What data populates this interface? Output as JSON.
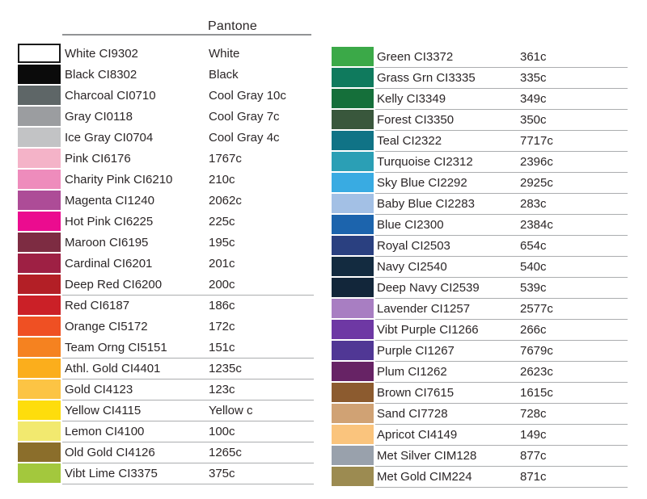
{
  "header": {
    "pantone_label": "Pantone"
  },
  "colors": {
    "text": "#2b2627",
    "divider": "#abadaf",
    "header_rule": "#919395"
  },
  "columns": [
    {
      "id": "left",
      "rows": [
        {
          "name": "White",
          "code": "CI9302",
          "pantone": "White",
          "color": "#ffffff",
          "swatch_border": "#1a1a1a",
          "divider": false
        },
        {
          "name": "Black",
          "code": "CI8302",
          "pantone": "Black",
          "color": "#0b0b0b",
          "divider": false
        },
        {
          "name": "Charcoal",
          "code": "CI0710",
          "pantone": "Cool Gray 10c",
          "color": "#5e6667",
          "divider": false
        },
        {
          "name": "Gray",
          "code": "CI0118",
          "pantone": "Cool Gray 7c",
          "color": "#9b9da0",
          "divider": false
        },
        {
          "name": "Ice Gray",
          "code": "CI0704",
          "pantone": "Cool Gray 4c",
          "color": "#c2c3c5",
          "divider": false
        },
        {
          "name": "Pink",
          "code": "CI6176",
          "pantone": "1767c",
          "color": "#f4b3c8",
          "divider": false
        },
        {
          "name": "Charity Pink",
          "code": "CI6210",
          "pantone": "210c",
          "color": "#ee8cbc",
          "divider": false
        },
        {
          "name": "Magenta",
          "code": "CI1240",
          "pantone": "2062c",
          "color": "#ad4c97",
          "divider": false
        },
        {
          "name": "Hot Pink",
          "code": "CI6225",
          "pantone": "225c",
          "color": "#eb0c8f",
          "divider": false
        },
        {
          "name": "Maroon",
          "code": "CI6195",
          "pantone": "195c",
          "color": "#7d2c42",
          "divider": false
        },
        {
          "name": "Cardinal",
          "code": "CI6201",
          "pantone": "201c",
          "color": "#9e2044",
          "divider": false
        },
        {
          "name": "Deep Red",
          "code": "CI6200",
          "pantone": "200c",
          "color": "#b31f26",
          "divider": true
        },
        {
          "name": "Red",
          "code": "CI6187",
          "pantone": "186c",
          "color": "#cb2027",
          "divider": false
        },
        {
          "name": "Orange",
          "code": "CI5172",
          "pantone": "172c",
          "color": "#ef5023",
          "divider": false
        },
        {
          "name": "Team Orng",
          "code": "CI5151",
          "pantone": "151c",
          "color": "#f58220",
          "divider": true
        },
        {
          "name": "Athl. Gold",
          "code": "CI4401",
          "pantone": "1235c",
          "color": "#fbae1c",
          "divider": true
        },
        {
          "name": "Gold",
          "code": "CI4123",
          "pantone": "123c",
          "color": "#fcc444",
          "divider": true
        },
        {
          "name": "Yellow",
          "code": "CI4115",
          "pantone": "Yellow c",
          "color": "#fedd0c",
          "divider": true
        },
        {
          "name": "Lemon",
          "code": "CI4100",
          "pantone": "100c",
          "color": "#f2e96f",
          "divider": true
        },
        {
          "name": "Old Gold",
          "code": "CI4126",
          "pantone": "1265c",
          "color": "#8b6e2b",
          "divider": true
        },
        {
          "name": "Vibt Lime",
          "code": "CI3375",
          "pantone": "375c",
          "color": "#a3c83d",
          "divider": true
        }
      ]
    },
    {
      "id": "right",
      "rows": [
        {
          "name": "Green",
          "code": "CI3372",
          "pantone": "361c",
          "color": "#3ba948",
          "divider": true
        },
        {
          "name": "Grass Grn",
          "code": "CI3335",
          "pantone": "335c",
          "color": "#0f7a5d",
          "divider": true
        },
        {
          "name": "Kelly",
          "code": "CI3349",
          "pantone": "349c",
          "color": "#156f3a",
          "divider": true
        },
        {
          "name": "Forest",
          "code": "CI3350",
          "pantone": "350c",
          "color": "#39573c",
          "divider": true
        },
        {
          "name": "Teal",
          "code": "CI2322",
          "pantone": "7717c",
          "color": "#107386",
          "divider": true
        },
        {
          "name": "Turquoise",
          "code": "CI2312",
          "pantone": "2396c",
          "color": "#2b9fb5",
          "divider": true
        },
        {
          "name": "Sky Blue",
          "code": "CI2292",
          "pantone": "2925c",
          "color": "#39abe2",
          "divider": true
        },
        {
          "name": "Baby Blue",
          "code": "CI2283",
          "pantone": "283c",
          "color": "#a3c0e5",
          "divider": true
        },
        {
          "name": "Blue",
          "code": "CI2300",
          "pantone": "2384c",
          "color": "#1c64ad",
          "divider": true
        },
        {
          "name": "Royal",
          "code": "CI2503",
          "pantone": "654c",
          "color": "#2a4080",
          "divider": true
        },
        {
          "name": "Navy",
          "code": "CI2540",
          "pantone": "540c",
          "color": "#132b40",
          "divider": true
        },
        {
          "name": "Deep Navy",
          "code": "CI2539",
          "pantone": "539c",
          "color": "#12263a",
          "divider": true
        },
        {
          "name": "Lavender",
          "code": "CI1257",
          "pantone": "2577c",
          "color": "#a87ec2",
          "divider": true
        },
        {
          "name": "Vibt Purple",
          "code": "CI1266",
          "pantone": "266c",
          "color": "#6e38a4",
          "divider": true
        },
        {
          "name": "Purple",
          "code": "CI1267",
          "pantone": "7679c",
          "color": "#503795",
          "divider": true
        },
        {
          "name": "Plum",
          "code": "CI1262",
          "pantone": "2623c",
          "color": "#672365",
          "divider": true
        },
        {
          "name": "Brown",
          "code": "CI7615",
          "pantone": "1615c",
          "color": "#8c5b2f",
          "divider": true
        },
        {
          "name": "Sand",
          "code": "CI7728",
          "pantone": "728c",
          "color": "#d0a274",
          "divider": true
        },
        {
          "name": "Apricot",
          "code": "CI4149",
          "pantone": "149c",
          "color": "#fac47d",
          "divider": true
        },
        {
          "name": "Met Silver",
          "code": "CIM128",
          "pantone": "877c",
          "color": "#99a1ac",
          "divider": true
        },
        {
          "name": "Met Gold",
          "code": "CIM224",
          "pantone": "871c",
          "color": "#9c8b51",
          "divider": true
        }
      ]
    }
  ]
}
